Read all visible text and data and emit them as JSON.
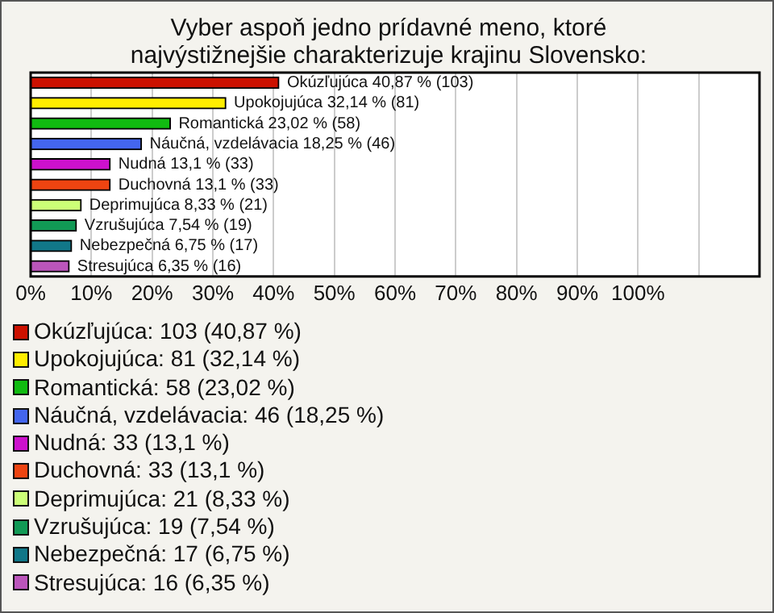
{
  "chart_data": {
    "type": "bar",
    "orientation": "horizontal",
    "title": "Vyber aspoň jedno prídavné meno, ktoré najvýstižnejšie charakterizuje krajinu Slovensko:",
    "categories": [
      null,
      null,
      null,
      null,
      null,
      null,
      null,
      null,
      null,
      null
    ],
    "series": [
      {
        "name": "Okúzľujúca: 103 (40,87 %)",
        "color": "#cc1100",
        "values": [
          40.87,
          null,
          null,
          null,
          null,
          null,
          null,
          null,
          null,
          null
        ],
        "value_labels": [
          "Okúzľujúca 40,87 % (103)",
          null,
          null,
          null,
          null,
          null,
          null,
          null,
          null,
          null
        ]
      },
      {
        "name": "Upokojujúca: 81 (32,14 %)",
        "color": "#ffee00",
        "values": [
          null,
          32.14,
          null,
          null,
          null,
          null,
          null,
          null,
          null,
          null
        ],
        "value_labels": [
          null,
          "Upokojujúca 32,14 % (81)",
          null,
          null,
          null,
          null,
          null,
          null,
          null,
          null
        ]
      },
      {
        "name": "Romantická: 58 (23,02 %)",
        "color": "#11bb11",
        "values": [
          null,
          null,
          23.02,
          null,
          null,
          null,
          null,
          null,
          null,
          null
        ],
        "value_labels": [
          null,
          null,
          "Romantická 23,02 % (58)",
          null,
          null,
          null,
          null,
          null,
          null,
          null
        ]
      },
      {
        "name": "Náučná, vzdelávacia: 46 (18,25 %)",
        "color": "#4466ee",
        "values": [
          null,
          null,
          null,
          18.25,
          null,
          null,
          null,
          null,
          null,
          null
        ],
        "value_labels": [
          null,
          null,
          null,
          "Náučná, vzdelávacia 18,25 % (46)",
          null,
          null,
          null,
          null,
          null,
          null
        ]
      },
      {
        "name": "Nudná: 33 (13,1 %)",
        "color": "#cc11cc",
        "values": [
          null,
          null,
          null,
          null,
          13.1,
          null,
          null,
          null,
          null,
          null
        ],
        "value_labels": [
          null,
          null,
          null,
          null,
          "Nudná 13,1 % (33)",
          null,
          null,
          null,
          null,
          null
        ]
      },
      {
        "name": "Duchovná: 33 (13,1 %)",
        "color": "#ee4411",
        "values": [
          null,
          null,
          null,
          null,
          null,
          13.1,
          null,
          null,
          null,
          null
        ],
        "value_labels": [
          null,
          null,
          null,
          null,
          null,
          "Duchovná 13,1 % (33)",
          null,
          null,
          null,
          null
        ]
      },
      {
        "name": "Deprimujúca: 21 (8,33 %)",
        "color": "#ccff77",
        "values": [
          null,
          null,
          null,
          null,
          null,
          null,
          8.33,
          null,
          null,
          null
        ],
        "value_labels": [
          null,
          null,
          null,
          null,
          null,
          null,
          "Deprimujúca 8,33 % (21)",
          null,
          null,
          null
        ]
      },
      {
        "name": "Vzrušujúca: 19 (7,54 %)",
        "color": "#119955",
        "values": [
          null,
          null,
          null,
          null,
          null,
          null,
          null,
          7.54,
          null,
          null
        ],
        "value_labels": [
          null,
          null,
          null,
          null,
          null,
          null,
          null,
          "Vzrušujúca 7,54 % (19)",
          null,
          null
        ]
      },
      {
        "name": "Nebezpečná: 17 (6,75 %)",
        "color": "#117788",
        "values": [
          null,
          null,
          null,
          null,
          null,
          null,
          null,
          null,
          6.75,
          null
        ],
        "value_labels": [
          null,
          null,
          null,
          null,
          null,
          null,
          null,
          null,
          "Nebezpečná 6,75 % (17)",
          null
        ]
      },
      {
        "name": "Stresujúca: 16 (6,35 %)",
        "color": "#bb55bb",
        "values": [
          null,
          null,
          null,
          null,
          null,
          null,
          null,
          null,
          null,
          6.35
        ],
        "value_labels": [
          null,
          null,
          null,
          null,
          null,
          null,
          null,
          null,
          null,
          "Stresujúca 6,35 % (16)"
        ]
      }
    ],
    "xlim": [
      0,
      120
    ],
    "xticks": [
      {
        "value": 0,
        "label": "0%"
      },
      {
        "value": 10,
        "label": "10%"
      },
      {
        "value": 20,
        "label": "20%"
      },
      {
        "value": 30,
        "label": "30%"
      },
      {
        "value": 40,
        "label": "40%"
      },
      {
        "value": 50,
        "label": "50%"
      },
      {
        "value": 60,
        "label": "60%"
      },
      {
        "value": 70,
        "label": "70%"
      },
      {
        "value": 80,
        "label": "80%"
      },
      {
        "value": 90,
        "label": "90%"
      },
      {
        "value": 100,
        "label": "100%"
      },
      {
        "value": 110,
        "label": null
      },
      {
        "value": 120,
        "label": null
      }
    ],
    "grid": "x",
    "legend": "bottom",
    "tick_labels": "x"
  }
}
